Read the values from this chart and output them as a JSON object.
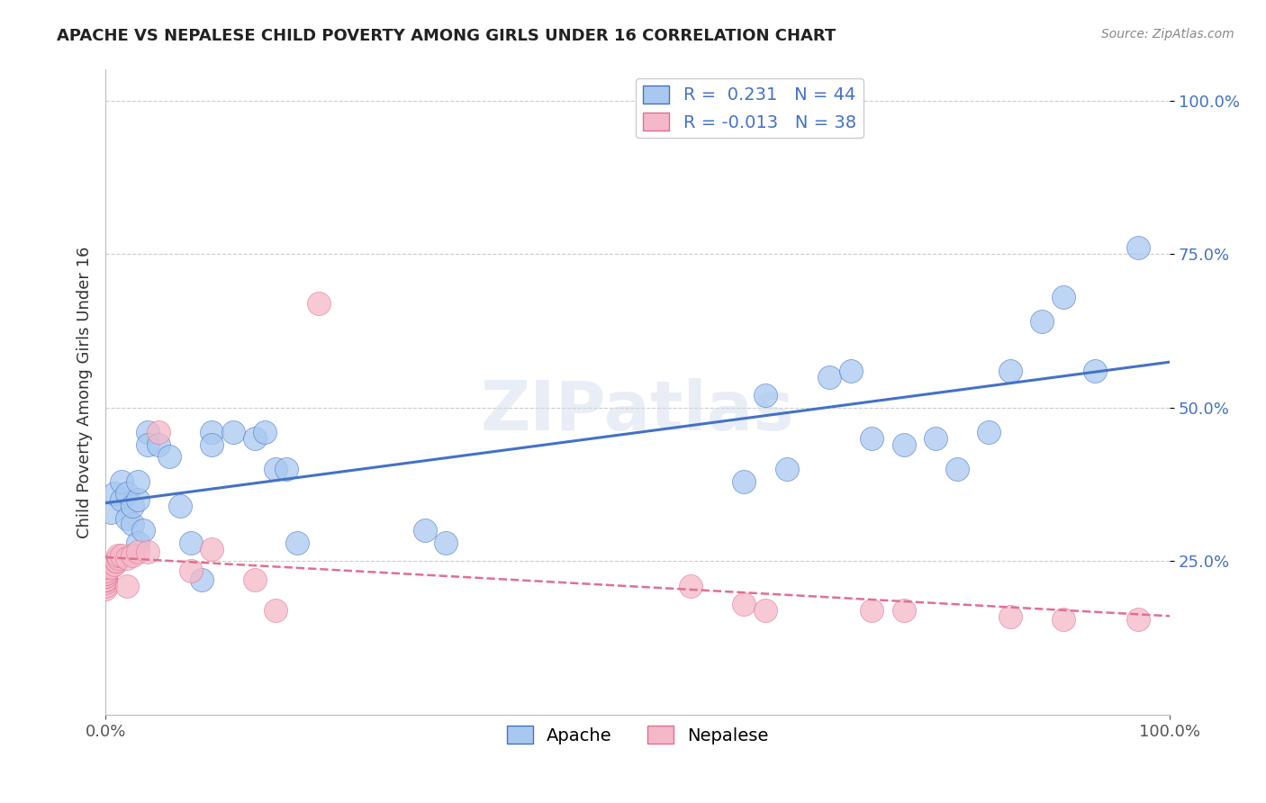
{
  "title": "APACHE VS NEPALESE CHILD POVERTY AMONG GIRLS UNDER 16 CORRELATION CHART",
  "source": "Source: ZipAtlas.com",
  "ylabel": "Child Poverty Among Girls Under 16",
  "watermark": "ZIPatlas",
  "apache_R": 0.231,
  "apache_N": 44,
  "nepalese_R": -0.013,
  "nepalese_N": 38,
  "apache_color": "#a8c8f0",
  "nepalese_color": "#f4b8c8",
  "apache_line_color": "#4472c4",
  "nepalese_line_color": "#e07090",
  "background_color": "#ffffff",
  "grid_color": "#cccccc",
  "apache_x": [
    0.005,
    0.008,
    0.015,
    0.015,
    0.02,
    0.02,
    0.025,
    0.025,
    0.03,
    0.03,
    0.03,
    0.035,
    0.04,
    0.04,
    0.05,
    0.06,
    0.07,
    0.08,
    0.09,
    0.1,
    0.1,
    0.12,
    0.14,
    0.15,
    0.16,
    0.17,
    0.18,
    0.3,
    0.32,
    0.6,
    0.62,
    0.64,
    0.68,
    0.7,
    0.72,
    0.75,
    0.78,
    0.8,
    0.83,
    0.85,
    0.88,
    0.9,
    0.93,
    0.97
  ],
  "apache_y": [
    0.33,
    0.36,
    0.35,
    0.38,
    0.36,
    0.32,
    0.31,
    0.34,
    0.35,
    0.38,
    0.28,
    0.3,
    0.46,
    0.44,
    0.44,
    0.42,
    0.34,
    0.28,
    0.22,
    0.46,
    0.44,
    0.46,
    0.45,
    0.46,
    0.4,
    0.4,
    0.28,
    0.3,
    0.28,
    0.38,
    0.52,
    0.4,
    0.55,
    0.56,
    0.45,
    0.44,
    0.45,
    0.4,
    0.46,
    0.56,
    0.64,
    0.68,
    0.56,
    0.76
  ],
  "nepalese_x": [
    0.0,
    0.0,
    0.0,
    0.0,
    0.0,
    0.0,
    0.0,
    0.0,
    0.0,
    0.0,
    0.0,
    0.0,
    0.005,
    0.008,
    0.01,
    0.01,
    0.012,
    0.012,
    0.015,
    0.02,
    0.02,
    0.025,
    0.03,
    0.04,
    0.05,
    0.08,
    0.1,
    0.14,
    0.16,
    0.2,
    0.55,
    0.6,
    0.62,
    0.72,
    0.75,
    0.85,
    0.9,
    0.97
  ],
  "nepalese_y": [
    0.205,
    0.21,
    0.215,
    0.22,
    0.22,
    0.22,
    0.225,
    0.225,
    0.23,
    0.23,
    0.235,
    0.24,
    0.24,
    0.245,
    0.25,
    0.25,
    0.255,
    0.26,
    0.26,
    0.255,
    0.21,
    0.26,
    0.265,
    0.265,
    0.46,
    0.235,
    0.27,
    0.22,
    0.17,
    0.67,
    0.21,
    0.18,
    0.17,
    0.17,
    0.17,
    0.16,
    0.155,
    0.155
  ],
  "xlim": [
    0.0,
    1.0
  ],
  "ylim": [
    0.0,
    1.05
  ],
  "ytick_vals": [
    0.25,
    0.5,
    0.75,
    1.0
  ],
  "xtick_positions": [
    0.0,
    1.0
  ],
  "xtick_labels": [
    "0.0%",
    "100.0%"
  ]
}
